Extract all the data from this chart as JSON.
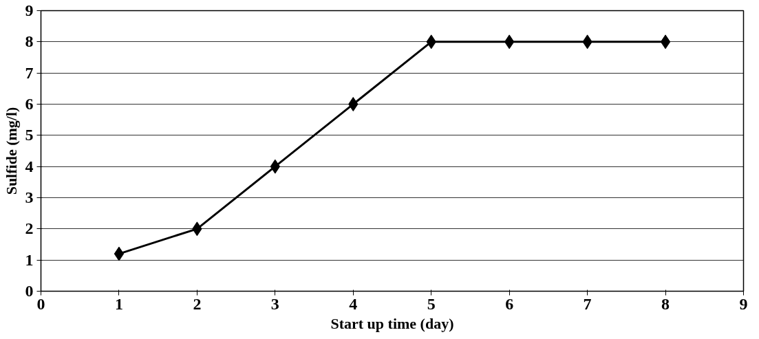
{
  "chart_data": {
    "type": "line",
    "xlabel": "Start up time (day)",
    "ylabel": "Sulfide (mg/l)",
    "x": [
      1,
      2,
      3,
      4,
      5,
      6,
      7,
      8
    ],
    "series": [
      {
        "color": "#000000",
        "values": [
          1.2,
          2,
          4,
          6,
          8,
          8,
          8,
          8
        ]
      }
    ],
    "xlim": [
      0,
      9
    ],
    "xticks": [
      0,
      1,
      2,
      3,
      4,
      5,
      6,
      7,
      8,
      9
    ],
    "ylim": [
      0,
      9
    ],
    "yticks": [
      0,
      1,
      2,
      3,
      4,
      5,
      6,
      7,
      8,
      9
    ],
    "grid": "y",
    "marker": "diamond",
    "line_style": "solid"
  }
}
